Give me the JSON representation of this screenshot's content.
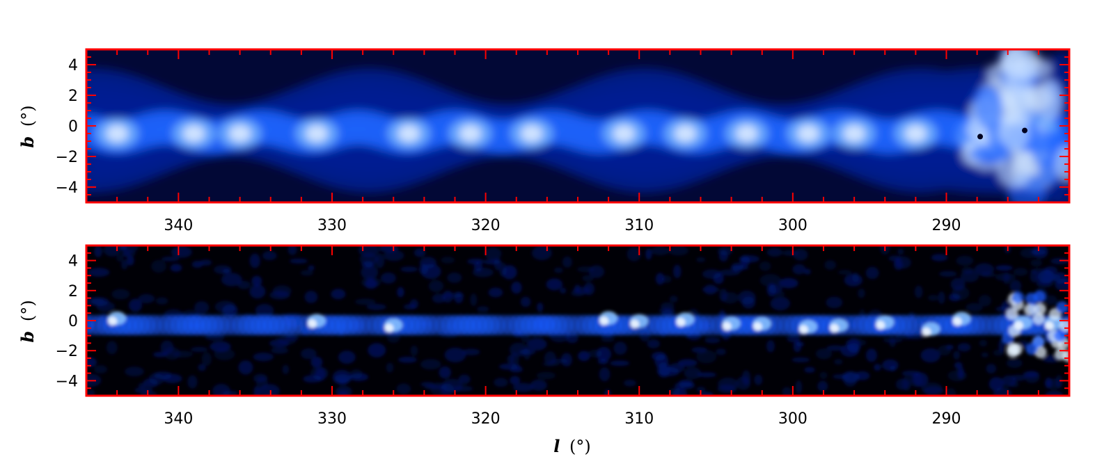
{
  "chart_data": [
    {
      "type": "heatmap",
      "panel": "top",
      "xlabel_symbol": "l",
      "xlabel_unit": "(°)",
      "ylabel_symbol": "b",
      "ylabel_unit": "(°)",
      "xlim": [
        346,
        282
      ],
      "ylim": [
        -5,
        5
      ],
      "x_ticks": [
        340,
        330,
        320,
        310,
        300,
        290
      ],
      "y_ticks": [
        4,
        2,
        0,
        -2,
        -4
      ],
      "frame_color": "#ff0000",
      "colormap": [
        "#000010",
        "#00209a",
        "#1f66ff",
        "#ffffff"
      ],
      "description_values": {
        "plane_center_b": 0,
        "bright_knots_l": [
          344,
          339,
          336,
          331,
          325,
          321,
          317,
          311,
          307,
          303,
          299,
          296,
          292,
          288,
          286,
          284
        ],
        "dark_points": [
          [
            287.8,
            -0.7
          ],
          [
            284.9,
            -0.3
          ]
        ]
      }
    },
    {
      "type": "heatmap",
      "panel": "bottom",
      "xlabel_symbol": "l",
      "xlabel_unit": "(°)",
      "ylabel_symbol": "b",
      "ylabel_unit": "(°)",
      "xlim": [
        346,
        282
      ],
      "ylim": [
        -5,
        5
      ],
      "x_ticks": [
        340,
        330,
        320,
        310,
        300,
        290
      ],
      "y_ticks": [
        4,
        2,
        0,
        -2,
        -4
      ],
      "frame_color": "#ff0000",
      "colormap": [
        "#000006",
        "#00187a",
        "#1a5cff",
        "#ffffff"
      ],
      "description_values": {
        "bright_knots_l": [
          344,
          331,
          326,
          312,
          310,
          307,
          304,
          302,
          299,
          297,
          294,
          291,
          289,
          285,
          283
        ]
      }
    }
  ]
}
